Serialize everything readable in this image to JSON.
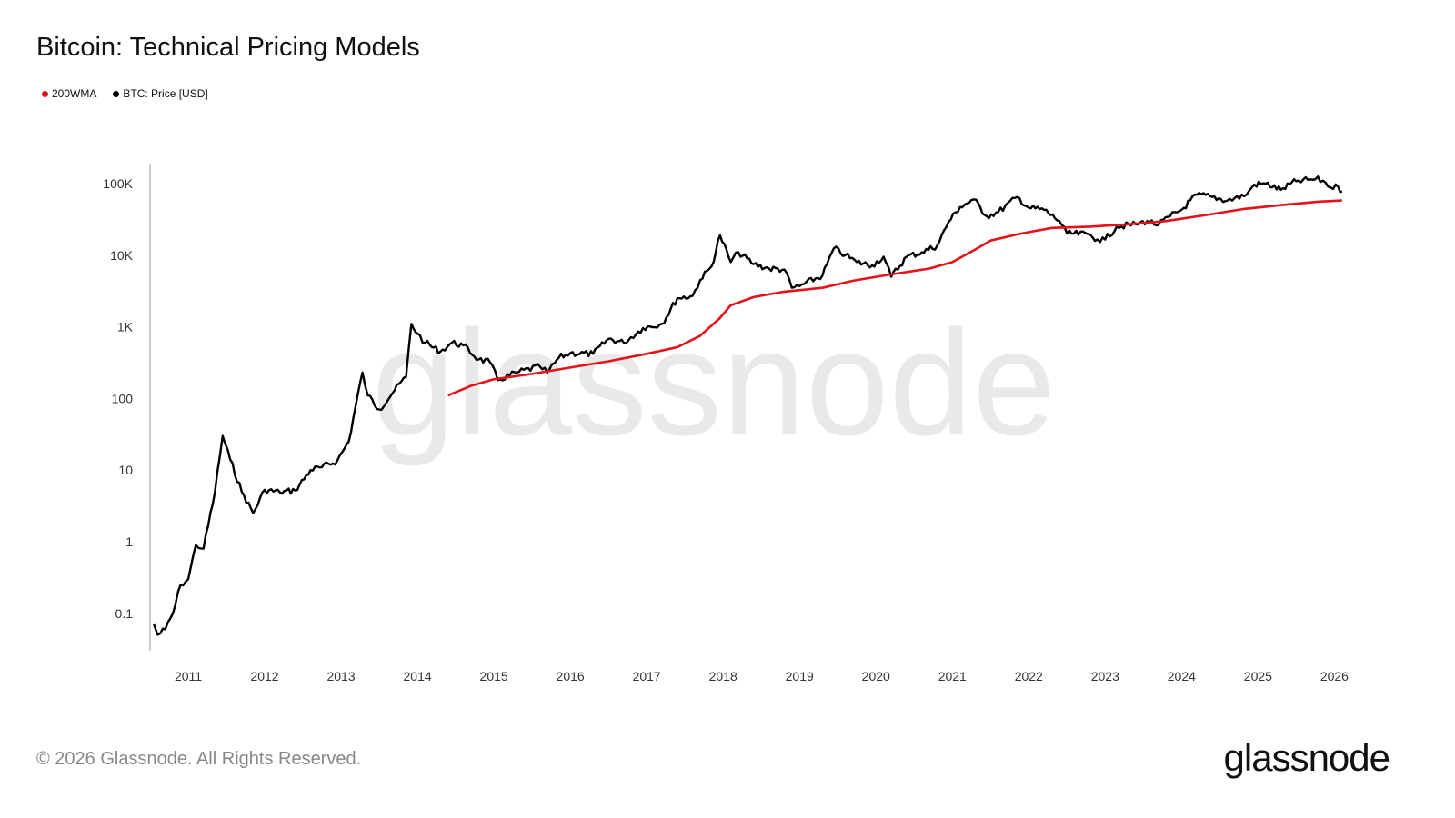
{
  "title": "Bitcoin: Technical Pricing Models",
  "footer": "© 2026 Glassnode. All Rights Reserved.",
  "logo": "glassnode",
  "watermark": "glassnode",
  "chart_data": {
    "type": "line",
    "title": "Bitcoin: Technical Pricing Models",
    "y_scale": "log",
    "ylim": [
      0.03,
      190000
    ],
    "xlim": [
      2010.5,
      2026.15
    ],
    "y_ticks": [
      {
        "v": 0.1,
        "label": "0.1"
      },
      {
        "v": 1,
        "label": "1"
      },
      {
        "v": 10,
        "label": "10"
      },
      {
        "v": 100,
        "label": "100"
      },
      {
        "v": 1000,
        "label": "1K"
      },
      {
        "v": 10000,
        "label": "10K"
      },
      {
        "v": 100000,
        "label": "100K"
      }
    ],
    "x_ticks": [
      "2011",
      "2012",
      "2013",
      "2014",
      "2015",
      "2016",
      "2017",
      "2018",
      "2019",
      "2020",
      "2021",
      "2022",
      "2023",
      "2024",
      "2025",
      "2026"
    ],
    "grid": false,
    "legend_placement": "top-left",
    "series": [
      {
        "name": "200WMA",
        "color": "#e3121b",
        "x": [
          2014.4,
          2014.7,
          2015.0,
          2015.5,
          2016.0,
          2016.5,
          2017.0,
          2017.4,
          2017.7,
          2017.95,
          2018.1,
          2018.4,
          2018.8,
          2019.3,
          2019.7,
          2020.2,
          2020.7,
          2021.0,
          2021.3,
          2021.5,
          2021.9,
          2022.3,
          2022.8,
          2023.3,
          2023.8,
          2024.3,
          2024.8,
          2025.3,
          2025.8,
          2026.1
        ],
        "y": [
          110,
          150,
          185,
          220,
          270,
          330,
          420,
          520,
          750,
          1300,
          2000,
          2600,
          3100,
          3500,
          4400,
          5400,
          6500,
          8000,
          12000,
          16000,
          20000,
          24000,
          25000,
          27000,
          30000,
          36000,
          44000,
          50000,
          56000,
          58000
        ]
      },
      {
        "name": "BTC: Price [USD]",
        "color": "#000000",
        "x": [
          2010.55,
          2010.6,
          2010.7,
          2010.8,
          2010.9,
          2011.0,
          2011.1,
          2011.2,
          2011.35,
          2011.45,
          2011.55,
          2011.7,
          2011.85,
          2012.0,
          2012.2,
          2012.4,
          2012.6,
          2012.75,
          2012.95,
          2013.1,
          2013.28,
          2013.35,
          2013.5,
          2013.7,
          2013.85,
          2013.92,
          2014.0,
          2014.1,
          2014.3,
          2014.45,
          2014.6,
          2014.8,
          2014.95,
          2015.05,
          2015.3,
          2015.6,
          2015.7,
          2015.85,
          2016.0,
          2016.3,
          2016.5,
          2016.7,
          2016.95,
          2017.2,
          2017.4,
          2017.6,
          2017.7,
          2017.85,
          2017.96,
          2018.1,
          2018.2,
          2018.4,
          2018.6,
          2018.8,
          2018.9,
          2019.0,
          2019.3,
          2019.45,
          2019.6,
          2019.75,
          2019.95,
          2020.1,
          2020.2,
          2020.4,
          2020.6,
          2020.8,
          2020.95,
          2021.1,
          2021.28,
          2021.45,
          2021.6,
          2021.85,
          2022.0,
          2022.2,
          2022.4,
          2022.5,
          2022.8,
          2022.9,
          2023.0,
          2023.15,
          2023.4,
          2023.55,
          2023.7,
          2023.85,
          2024.0,
          2024.2,
          2024.4,
          2024.6,
          2024.85,
          2024.95,
          2025.1,
          2025.3,
          2025.5,
          2025.75,
          2025.85,
          2025.95,
          2026.05,
          2026.1
        ],
        "y": [
          0.07,
          0.05,
          0.06,
          0.1,
          0.25,
          0.3,
          0.9,
          0.8,
          5,
          30,
          14,
          5,
          2.5,
          5.3,
          4.9,
          5.2,
          10,
          11,
          13.5,
          25,
          230,
          110,
          70,
          130,
          200,
          1100,
          800,
          600,
          450,
          600,
          550,
          350,
          320,
          180,
          230,
          280,
          230,
          370,
          430,
          420,
          680,
          600,
          960,
          1100,
          2500,
          2700,
          4500,
          7000,
          19000,
          8000,
          11000,
          7500,
          6500,
          6300,
          3500,
          3700,
          5200,
          12500,
          10000,
          8000,
          7200,
          9500,
          5000,
          9500,
          11000,
          13500,
          29000,
          47000,
          60000,
          35000,
          40000,
          65000,
          46000,
          43000,
          30000,
          20000,
          19500,
          16500,
          16500,
          25000,
          27000,
          30000,
          26500,
          35000,
          43000,
          70000,
          65000,
          58000,
          70000,
          97000,
          100000,
          82000,
          108000,
          115000,
          110000,
          88000,
          90000,
          78000
        ]
      }
    ]
  }
}
